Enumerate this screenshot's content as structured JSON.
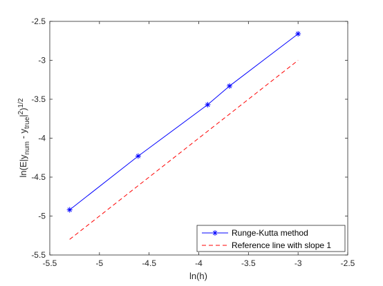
{
  "chart_data": {
    "type": "line",
    "xlabel": "ln(h)",
    "ylabel": {
      "prefix": "ln(E|y",
      "sub1": "num",
      "middle": " - y",
      "sub2": "true",
      "suffix1": "|",
      "sup1": "2",
      "suffix2": ")",
      "sup2": "1/2"
    },
    "xlim": [
      -5.5,
      -2.5
    ],
    "ylim": [
      -5.5,
      -2.5
    ],
    "xticks": [
      -5.5,
      -5,
      -4.5,
      -4,
      -3.5,
      -3,
      -2.5
    ],
    "yticks": [
      -5.5,
      -5,
      -4.5,
      -4,
      -3.5,
      -3,
      -2.5
    ],
    "xtick_labels": [
      "-5.5",
      "-5",
      "-4.5",
      "-4",
      "-3.5",
      "-3",
      "-2.5"
    ],
    "ytick_labels": [
      "-5.5",
      "-5",
      "-4.5",
      "-4",
      "-3.5",
      "-3",
      "-2.5"
    ],
    "grid": false,
    "legend_position": "bottom-right",
    "series": [
      {
        "name": "Runge-Kutta method",
        "color": "#0000ff",
        "line_style": "solid",
        "marker": "asterisk",
        "x": [
          -5.3,
          -4.61,
          -3.91,
          -3.69,
          -3.0
        ],
        "y": [
          -4.92,
          -4.23,
          -3.57,
          -3.33,
          -2.66
        ]
      },
      {
        "name": "Reference line with slope 1",
        "color": "#ff0000",
        "line_style": "dashed",
        "marker": "none",
        "x": [
          -5.3,
          -3.0
        ],
        "y": [
          -5.3,
          -3.0
        ]
      }
    ]
  }
}
